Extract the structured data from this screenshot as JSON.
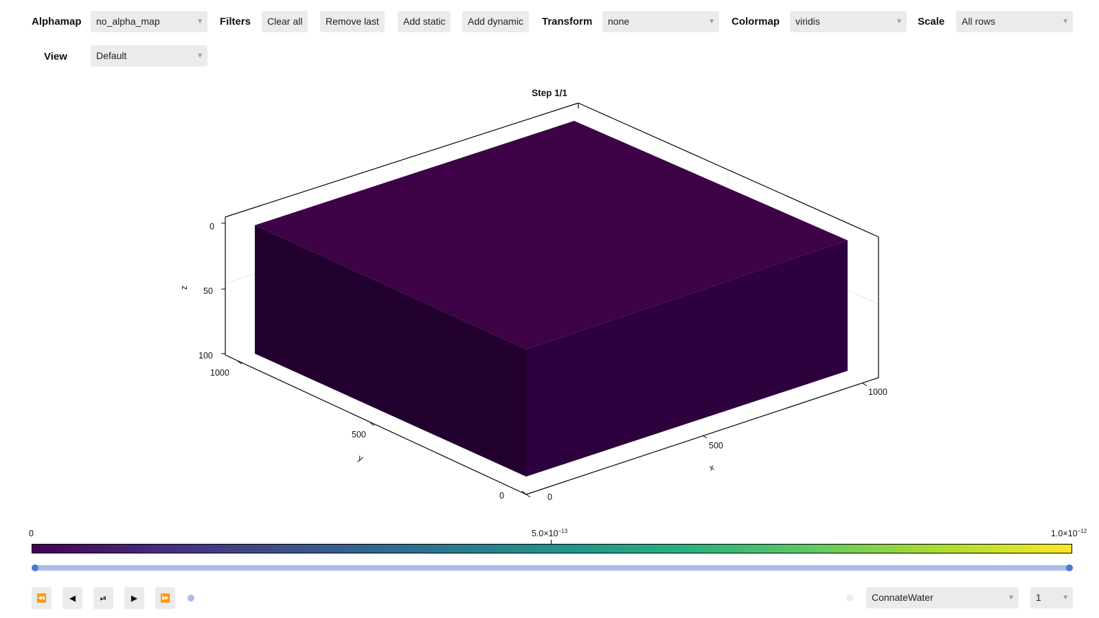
{
  "toolbar": {
    "alphamap_label": "Alphamap",
    "alphamap_value": "no_alpha_map",
    "filters_label": "Filters",
    "clear_all": "Clear all",
    "remove_last": "Remove last",
    "add_static": "Add static",
    "add_dynamic": "Add dynamic",
    "transform_label": "Transform",
    "transform_value": "none",
    "colormap_label": "Colormap",
    "colormap_value": "viridis",
    "scale_label": "Scale",
    "scale_value": "All rows",
    "view_label": "View",
    "view_value": "Default",
    "dropdown_arrow": "▼"
  },
  "plot": {
    "title": "Step 1/1",
    "xlabel": "x",
    "ylabel": "y",
    "zlabel": "z",
    "x_ticks": [
      "0",
      "500",
      "1000"
    ],
    "y_ticks": [
      "0",
      "500",
      "1000"
    ],
    "z_ticks": [
      "0",
      "50",
      "100"
    ],
    "top_color": "#3d0346",
    "front_color": "#2d003e",
    "left_color": "#22002e"
  },
  "colorbar": {
    "min_label": "0",
    "mid_base": "5.0×10",
    "mid_exp": "−13",
    "max_base": "1.0×10",
    "max_exp": "−12",
    "colors": [
      "#440154",
      "#472d7b",
      "#3b528b",
      "#2c728e",
      "#21918c",
      "#28ae80",
      "#5ec962",
      "#addc30",
      "#fde725"
    ]
  },
  "slider": {
    "track_color": "#a9bde8",
    "handle_color": "#4a78d0",
    "value": 1.0
  },
  "playback": {
    "first": "⏪",
    "prev": "◀",
    "playpause": "⏯",
    "play": "▶",
    "last": "⏩"
  },
  "bottom": {
    "property_value": "ConnateWater",
    "step_value": "1"
  }
}
